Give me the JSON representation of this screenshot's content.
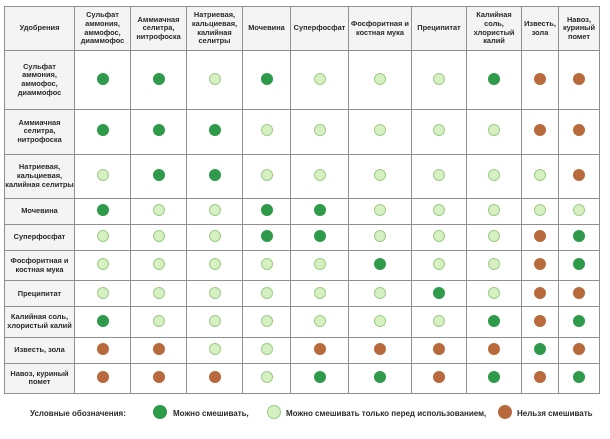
{
  "colors": {
    "green": "#2e9a4a",
    "light": "#d6f0c2",
    "brown": "#b86a3c"
  },
  "corner_label": "Удобрения",
  "columns": [
    "Сульфат аммония, аммофос, диаммофос",
    "Аммиачная селитра, нитрофоска",
    "Натриевая, кальциевая, калийная селитры",
    "Мочевина",
    "Суперфосфат",
    "Фосфоритная и костная мука",
    "Преципитат",
    "Калийная соль, хлористый калий",
    "Известь, зола",
    "Навоз, куриный помет"
  ],
  "rows": [
    {
      "label": "Сульфат аммония, аммофос, диаммофос",
      "cells": [
        "green",
        "green",
        "light",
        "green",
        "light",
        "light",
        "light",
        "green",
        "brown",
        "brown"
      ]
    },
    {
      "label": "Аммиачная селитра, нитрофоска",
      "cells": [
        "green",
        "green",
        "green",
        "light",
        "light",
        "light",
        "light",
        "light",
        "brown",
        "brown"
      ]
    },
    {
      "label": "Натриевая, кальциевая, калийная селитры",
      "cells": [
        "light",
        "green",
        "green",
        "light",
        "light",
        "light",
        "light",
        "light",
        "light",
        "brown"
      ]
    },
    {
      "label": "Мочевина",
      "cells": [
        "green",
        "light",
        "light",
        "green",
        "green",
        "light",
        "light",
        "light",
        "light",
        "light"
      ]
    },
    {
      "label": "Суперфосфат",
      "cells": [
        "light",
        "light",
        "light",
        "green",
        "green",
        "light",
        "light",
        "light",
        "brown",
        "green"
      ]
    },
    {
      "label": "Фосфоритная и костная мука",
      "cells": [
        "light",
        "light",
        "light",
        "light",
        "light",
        "green",
        "light",
        "light",
        "brown",
        "green"
      ]
    },
    {
      "label": "Преципитат",
      "cells": [
        "light",
        "light",
        "light",
        "light",
        "light",
        "light",
        "green",
        "light",
        "brown",
        "brown"
      ]
    },
    {
      "label": "Калийная соль, хлористый калий",
      "cells": [
        "green",
        "light",
        "light",
        "light",
        "light",
        "light",
        "light",
        "green",
        "brown",
        "green"
      ]
    },
    {
      "label": "Известь, зола",
      "cells": [
        "brown",
        "brown",
        "light",
        "light",
        "brown",
        "brown",
        "brown",
        "brown",
        "green",
        "brown"
      ]
    },
    {
      "label": "Навоз, куриный помет",
      "cells": [
        "brown",
        "brown",
        "brown",
        "light",
        "green",
        "green",
        "brown",
        "green",
        "brown",
        "green"
      ]
    }
  ],
  "legend": {
    "title": "Условные обозначения:",
    "items": [
      {
        "color": "green",
        "label": "Можно смешивать,"
      },
      {
        "color": "light",
        "label": "Можно смешивать только перед использованием,"
      },
      {
        "color": "brown",
        "label": "Нельзя смешивать"
      }
    ]
  }
}
